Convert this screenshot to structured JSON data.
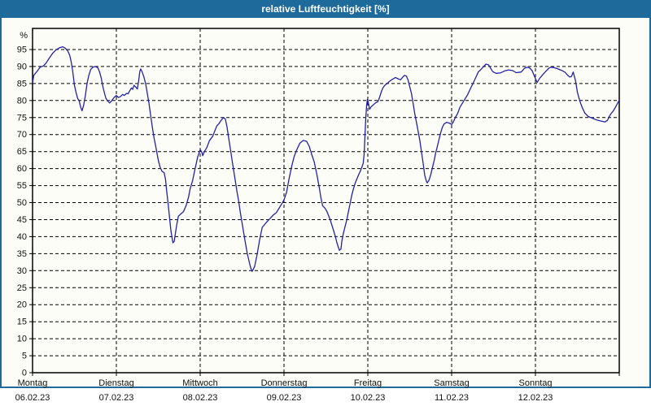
{
  "window": {
    "title": "relative Luftfeuchtigkeit [%]"
  },
  "colors": {
    "titlebar": "#1d6a9b",
    "title_text": "#ffffff",
    "background": "#fcfdf7",
    "grid": "#000000",
    "frame": "#000000",
    "label_text": "#111111",
    "series_line": "#2222aa"
  },
  "chart_data": {
    "type": "line",
    "title": "relative Luftfeuchtigkeit [%]",
    "y_unit": "%",
    "ylim": [
      0,
      101
    ],
    "y_ticks": [
      0,
      5,
      10,
      15,
      20,
      25,
      30,
      35,
      40,
      45,
      50,
      55,
      60,
      65,
      70,
      75,
      80,
      85,
      90,
      95
    ],
    "grid": "dashed",
    "legend_position": "none",
    "x_axis": {
      "days": [
        {
          "label": "Montag",
          "date": "06.02.23"
        },
        {
          "label": "Dienstag",
          "date": "07.02.23"
        },
        {
          "label": "Mittwoch",
          "date": "08.02.23"
        },
        {
          "label": "Donnerstag",
          "date": "09.02.23"
        },
        {
          "label": "Freitag",
          "date": "10.02.23"
        },
        {
          "label": "Samstag",
          "date": "11.02.23"
        },
        {
          "label": "Sonntag",
          "date": "12.02.23"
        }
      ]
    },
    "series": [
      {
        "name": "relative Luftfeuchtigkeit",
        "color": "#2222aa",
        "x_unit": "days_from_monday",
        "points": [
          [
            0,
            85.2
          ],
          [
            0.015,
            87.4
          ],
          [
            0.06,
            88.8
          ],
          [
            0.09,
            89.8
          ],
          [
            0.13,
            90.2
          ],
          [
            0.16,
            91.0
          ],
          [
            0.2,
            92.5
          ],
          [
            0.24,
            93.9
          ],
          [
            0.28,
            94.9
          ],
          [
            0.32,
            95.5
          ],
          [
            0.36,
            95.8
          ],
          [
            0.39,
            95.4
          ],
          [
            0.42,
            94.6
          ],
          [
            0.445,
            93.2
          ],
          [
            0.46,
            91.5
          ],
          [
            0.48,
            88.5
          ],
          [
            0.5,
            84.5
          ],
          [
            0.52,
            82.2
          ],
          [
            0.54,
            80.5
          ],
          [
            0.555,
            80.0
          ],
          [
            0.575,
            78.0
          ],
          [
            0.59,
            77.0
          ],
          [
            0.61,
            78.6
          ],
          [
            0.63,
            81.5
          ],
          [
            0.65,
            85.0
          ],
          [
            0.67,
            87.3
          ],
          [
            0.695,
            89.2
          ],
          [
            0.72,
            89.8
          ],
          [
            0.75,
            90.0
          ],
          [
            0.78,
            89.6
          ],
          [
            0.8,
            88.4
          ],
          [
            0.82,
            86.5
          ],
          [
            0.84,
            84.0
          ],
          [
            0.86,
            82.0
          ],
          [
            0.875,
            80.7
          ],
          [
            0.895,
            79.9
          ],
          [
            0.92,
            79.3
          ],
          [
            0.95,
            80.1
          ],
          [
            0.975,
            81.0
          ],
          [
            1.0,
            81.5
          ],
          [
            1.025,
            80.9
          ],
          [
            1.05,
            81.2
          ],
          [
            1.075,
            81.8
          ],
          [
            1.095,
            81.5
          ],
          [
            1.12,
            82.1
          ],
          [
            1.14,
            82.0
          ],
          [
            1.16,
            82.9
          ],
          [
            1.18,
            83.7
          ],
          [
            1.195,
            83.3
          ],
          [
            1.21,
            84.5
          ],
          [
            1.23,
            84.0
          ],
          [
            1.25,
            83.4
          ],
          [
            1.265,
            85.7
          ],
          [
            1.28,
            88.5
          ],
          [
            1.29,
            89.3
          ],
          [
            1.31,
            88.3
          ],
          [
            1.33,
            86.8
          ],
          [
            1.35,
            84.8
          ],
          [
            1.37,
            82.0
          ],
          [
            1.39,
            79.0
          ],
          [
            1.41,
            75.5
          ],
          [
            1.43,
            72.0
          ],
          [
            1.45,
            69.0
          ],
          [
            1.47,
            66.5
          ],
          [
            1.5,
            62.5
          ],
          [
            1.52,
            60.5
          ],
          [
            1.545,
            59.2
          ],
          [
            1.57,
            58.8
          ],
          [
            1.585,
            57.0
          ],
          [
            1.6,
            53.5
          ],
          [
            1.62,
            49.0
          ],
          [
            1.635,
            45.5
          ],
          [
            1.65,
            42.0
          ],
          [
            1.665,
            39.5
          ],
          [
            1.675,
            38.2
          ],
          [
            1.69,
            38.6
          ],
          [
            1.7,
            40.3
          ],
          [
            1.72,
            43.5
          ],
          [
            1.74,
            46.0
          ],
          [
            1.77,
            46.7
          ],
          [
            1.8,
            47.3
          ],
          [
            1.83,
            49.0
          ],
          [
            1.86,
            51.5
          ],
          [
            1.88,
            54.0
          ],
          [
            1.91,
            56.5
          ],
          [
            1.94,
            60.0
          ],
          [
            1.97,
            63.4
          ],
          [
            2.0,
            65.6
          ],
          [
            2.02,
            64.8
          ],
          [
            2.03,
            63.8
          ],
          [
            2.05,
            65.0
          ],
          [
            2.08,
            66.2
          ],
          [
            2.11,
            68.2
          ],
          [
            2.15,
            69.5
          ],
          [
            2.18,
            71.4
          ],
          [
            2.2,
            72.6
          ],
          [
            2.22,
            73.1
          ],
          [
            2.25,
            74.2
          ],
          [
            2.28,
            75.0
          ],
          [
            2.3,
            74.6
          ],
          [
            2.32,
            72.2
          ],
          [
            2.34,
            69.0
          ],
          [
            2.36,
            65.8
          ],
          [
            2.38,
            62.6
          ],
          [
            2.4,
            59.4
          ],
          [
            2.42,
            56.2
          ],
          [
            2.44,
            53.1
          ],
          [
            2.46,
            50.3
          ],
          [
            2.48,
            47.0
          ],
          [
            2.5,
            44.0
          ],
          [
            2.53,
            39.5
          ],
          [
            2.56,
            35.2
          ],
          [
            2.59,
            32.0
          ],
          [
            2.61,
            30.3
          ],
          [
            2.62,
            29.8
          ],
          [
            2.65,
            31.2
          ],
          [
            2.68,
            34.8
          ],
          [
            2.71,
            39.1
          ],
          [
            2.74,
            42.7
          ],
          [
            2.78,
            43.9
          ],
          [
            2.81,
            44.7
          ],
          [
            2.84,
            45.5
          ],
          [
            2.87,
            46.3
          ],
          [
            2.91,
            47.1
          ],
          [
            2.94,
            48.3
          ],
          [
            2.97,
            49.5
          ],
          [
            3.0,
            50.8
          ],
          [
            3.03,
            53.0
          ],
          [
            3.06,
            57.0
          ],
          [
            3.09,
            60.5
          ],
          [
            3.12,
            63.5
          ],
          [
            3.15,
            65.4
          ],
          [
            3.19,
            67.5
          ],
          [
            3.23,
            68.3
          ],
          [
            3.27,
            68.0
          ],
          [
            3.3,
            66.6
          ],
          [
            3.33,
            64.2
          ],
          [
            3.36,
            62.0
          ],
          [
            3.39,
            58.5
          ],
          [
            3.42,
            54.5
          ],
          [
            3.44,
            51.5
          ],
          [
            3.46,
            49.1
          ],
          [
            3.49,
            48.3
          ],
          [
            3.51,
            47.5
          ],
          [
            3.53,
            46.3
          ],
          [
            3.55,
            45.1
          ],
          [
            3.57,
            43.5
          ],
          [
            3.59,
            41.9
          ],
          [
            3.61,
            40.3
          ],
          [
            3.63,
            38.3
          ],
          [
            3.65,
            36.8
          ],
          [
            3.66,
            36.0
          ],
          [
            3.68,
            36.4
          ],
          [
            3.69,
            38.7
          ],
          [
            3.71,
            41.1
          ],
          [
            3.73,
            43.1
          ],
          [
            3.75,
            45.1
          ],
          [
            3.77,
            47.5
          ],
          [
            3.79,
            49.9
          ],
          [
            3.81,
            52.3
          ],
          [
            3.83,
            54.2
          ],
          [
            3.85,
            55.8
          ],
          [
            3.87,
            57.0
          ],
          [
            3.89,
            58.2
          ],
          [
            3.91,
            59.2
          ],
          [
            3.93,
            60.5
          ],
          [
            3.945,
            61.5
          ],
          [
            3.955,
            64.0
          ],
          [
            3.965,
            69.0
          ],
          [
            3.975,
            74.5
          ],
          [
            3.985,
            78.5
          ],
          [
            3.995,
            80.4
          ],
          [
            4.01,
            79.0
          ],
          [
            4.02,
            77.4
          ],
          [
            4.04,
            78.2
          ],
          [
            4.06,
            78.6
          ],
          [
            4.09,
            79.3
          ],
          [
            4.12,
            79.7
          ],
          [
            4.14,
            80.9
          ],
          [
            4.16,
            82.5
          ],
          [
            4.18,
            83.7
          ],
          [
            4.2,
            84.4
          ],
          [
            4.23,
            85.0
          ],
          [
            4.26,
            85.7
          ],
          [
            4.29,
            86.2
          ],
          [
            4.33,
            86.8
          ],
          [
            4.36,
            86.4
          ],
          [
            4.39,
            86.1
          ],
          [
            4.42,
            87.0
          ],
          [
            4.44,
            87.4
          ],
          [
            4.46,
            87.2
          ],
          [
            4.48,
            86.1
          ],
          [
            4.5,
            84.1
          ],
          [
            4.52,
            82.1
          ],
          [
            4.54,
            79.3
          ],
          [
            4.56,
            76.1
          ],
          [
            4.58,
            73.7
          ],
          [
            4.6,
            71.0
          ],
          [
            4.62,
            68.3
          ],
          [
            4.64,
            65.0
          ],
          [
            4.66,
            61.5
          ],
          [
            4.68,
            58.0
          ],
          [
            4.7,
            56.2
          ],
          [
            4.71,
            55.8
          ],
          [
            4.73,
            56.6
          ],
          [
            4.75,
            58.2
          ],
          [
            4.77,
            60.2
          ],
          [
            4.79,
            62.2
          ],
          [
            4.81,
            64.6
          ],
          [
            4.83,
            66.6
          ],
          [
            4.85,
            68.6
          ],
          [
            4.87,
            70.6
          ],
          [
            4.89,
            72.2
          ],
          [
            4.91,
            73.1
          ],
          [
            4.94,
            73.6
          ],
          [
            4.97,
            73.4
          ],
          [
            4.99,
            73.1
          ],
          [
            5.0,
            73.0
          ],
          [
            5.02,
            73.7
          ],
          [
            5.05,
            75.3
          ],
          [
            5.07,
            76.1
          ],
          [
            5.1,
            78.1
          ],
          [
            5.13,
            79.3
          ],
          [
            5.16,
            80.5
          ],
          [
            5.19,
            81.7
          ],
          [
            5.22,
            83.3
          ],
          [
            5.26,
            85.3
          ],
          [
            5.29,
            86.9
          ],
          [
            5.32,
            88.5
          ],
          [
            5.34,
            88.9
          ],
          [
            5.37,
            89.7
          ],
          [
            5.41,
            90.7
          ],
          [
            5.44,
            90.5
          ],
          [
            5.46,
            89.7
          ],
          [
            5.49,
            88.5
          ],
          [
            5.53,
            88.0
          ],
          [
            5.58,
            88.1
          ],
          [
            5.63,
            88.7
          ],
          [
            5.68,
            89.0
          ],
          [
            5.73,
            88.8
          ],
          [
            5.77,
            88.2
          ],
          [
            5.83,
            88.4
          ],
          [
            5.87,
            89.5
          ],
          [
            5.9,
            89.8
          ],
          [
            5.93,
            89.6
          ],
          [
            5.96,
            88.8
          ],
          [
            5.99,
            87.0
          ],
          [
            6.02,
            85.3
          ],
          [
            6.05,
            86.5
          ],
          [
            6.09,
            87.7
          ],
          [
            6.12,
            88.5
          ],
          [
            6.16,
            89.5
          ],
          [
            6.18,
            89.8
          ],
          [
            6.22,
            89.7
          ],
          [
            6.26,
            89.4
          ],
          [
            6.31,
            88.9
          ],
          [
            6.35,
            88.4
          ],
          [
            6.39,
            87.3
          ],
          [
            6.41,
            86.9
          ],
          [
            6.43,
            87.1
          ],
          [
            6.45,
            88.4
          ],
          [
            6.48,
            85.7
          ],
          [
            6.5,
            82.5
          ],
          [
            6.53,
            79.8
          ],
          [
            6.56,
            77.8
          ],
          [
            6.59,
            76.3
          ],
          [
            6.63,
            75.3
          ],
          [
            6.68,
            74.8
          ],
          [
            6.73,
            74.3
          ],
          [
            6.78,
            74.0
          ],
          [
            6.83,
            73.7
          ],
          [
            6.86,
            74.2
          ],
          [
            6.88,
            75.3
          ],
          [
            6.9,
            76.1
          ],
          [
            6.93,
            77.0
          ],
          [
            6.96,
            78.3
          ],
          [
            6.98,
            79.2
          ],
          [
            7.0,
            80.1
          ]
        ]
      }
    ]
  }
}
